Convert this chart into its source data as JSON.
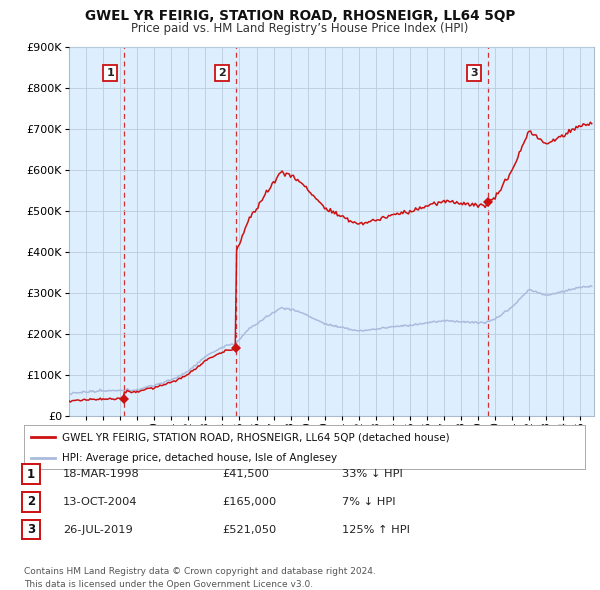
{
  "title": "GWEL YR FEIRIG, STATION ROAD, RHOSNEIGR, LL64 5QP",
  "subtitle": "Price paid vs. HM Land Registry’s House Price Index (HPI)",
  "hpi_color": "#aabbdd",
  "price_color": "#cc1111",
  "background_color": "#ffffff",
  "chart_bg_color": "#ddeeff",
  "grid_color": "#bbccdd",
  "legend_label_price": "GWEL YR FEIRIG, STATION ROAD, RHOSNEIGR, LL64 5QP (detached house)",
  "legend_label_hpi": "HPI: Average price, detached house, Isle of Anglesey",
  "sale_points": [
    {
      "date_x": 1998.21,
      "price": 41500,
      "label": "1"
    },
    {
      "date_x": 2004.79,
      "price": 165000,
      "label": "2"
    },
    {
      "date_x": 2019.56,
      "price": 521050,
      "label": "3"
    }
  ],
  "table_rows": [
    {
      "num": "1",
      "date": "18-MAR-1998",
      "price": "£41,500",
      "hpi_rel": "33% ↓ HPI"
    },
    {
      "num": "2",
      "date": "13-OCT-2004",
      "price": "£165,000",
      "hpi_rel": "7% ↓ HPI"
    },
    {
      "num": "3",
      "date": "26-JUL-2019",
      "price": "£521,050",
      "hpi_rel": "125% ↑ HPI"
    }
  ],
  "footnote": "Contains HM Land Registry data © Crown copyright and database right 2024.\nThis data is licensed under the Open Government Licence v3.0.",
  "ylim": [
    0,
    900000
  ],
  "yticks": [
    0,
    100000,
    200000,
    300000,
    400000,
    500000,
    600000,
    700000,
    800000,
    900000
  ],
  "ytick_labels": [
    "£0",
    "£100K",
    "£200K",
    "£300K",
    "£400K",
    "£500K",
    "£600K",
    "£700K",
    "£800K",
    "£900K"
  ],
  "xlim_start": 1995.0,
  "xlim_end": 2025.8
}
